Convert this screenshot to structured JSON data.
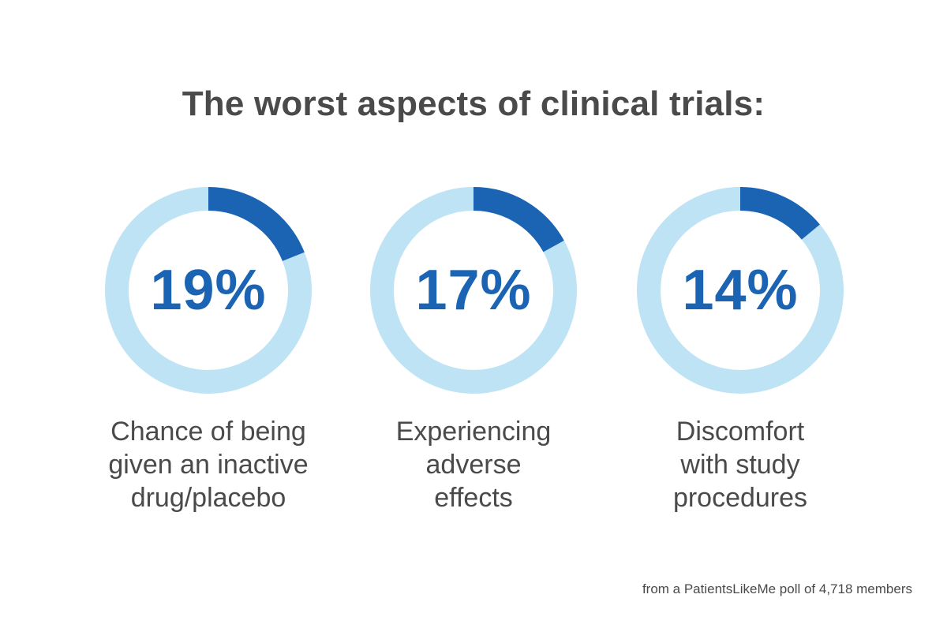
{
  "title": "The worst aspects of clinical trials:",
  "source": "from a PatientsLikeMe poll of 4,718 members",
  "colors": {
    "highlight": "#1a64b3",
    "track": "#bee3f5",
    "text": "#4a4a4a"
  },
  "chart_data": [
    {
      "type": "pie",
      "value": 19,
      "value_label": "19%",
      "label_lines": [
        "Chance of being",
        "given an inactive",
        "drug/placebo"
      ]
    },
    {
      "type": "pie",
      "value": 17,
      "value_label": "17%",
      "label_lines": [
        "Experiencing",
        "adverse",
        "effects"
      ]
    },
    {
      "type": "pie",
      "value": 14,
      "value_label": "14%",
      "label_lines": [
        "Discomfort",
        "with study",
        "procedures"
      ]
    }
  ]
}
